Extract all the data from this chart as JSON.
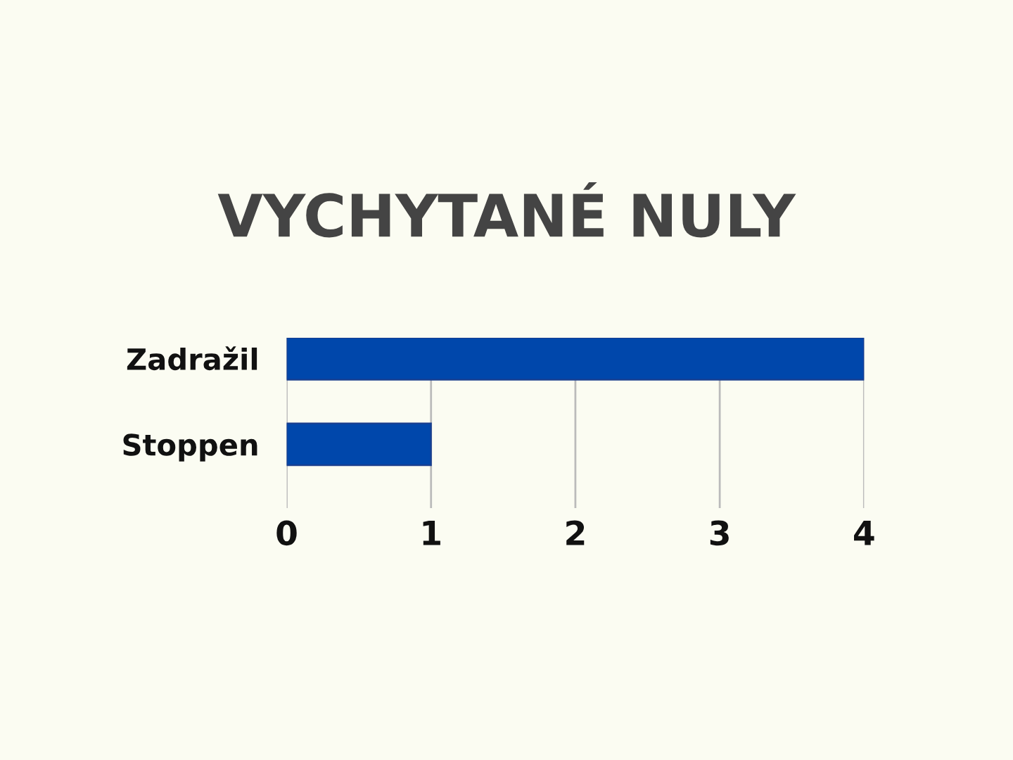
{
  "chart_data": {
    "type": "bar",
    "orientation": "horizontal",
    "title": "VYCHYTANÉ NULY",
    "categories": [
      "Zadražil",
      "Stoppen"
    ],
    "values": [
      4,
      1
    ],
    "color": "#0047ab",
    "xlim": [
      0,
      4
    ],
    "xticks": [
      0,
      1,
      2,
      3,
      4
    ],
    "grid": "x"
  }
}
